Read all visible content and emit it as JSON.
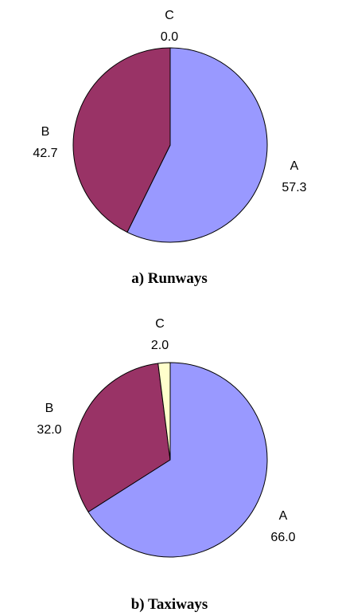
{
  "colors": {
    "A": "#9999ff",
    "B": "#993366",
    "C": "#ffffcc",
    "outline": "#000000"
  },
  "chart_data": [
    {
      "type": "pie",
      "caption": "a) Runways",
      "slices": [
        {
          "name": "A",
          "value": 57.3,
          "value_label": "57.3"
        },
        {
          "name": "B",
          "value": 42.7,
          "value_label": "42.7"
        },
        {
          "name": "C",
          "value": 0.0,
          "value_label": "0.0"
        }
      ]
    },
    {
      "type": "pie",
      "caption": "b) Taxiways",
      "slices": [
        {
          "name": "A",
          "value": 66.0,
          "value_label": "66.0"
        },
        {
          "name": "B",
          "value": 32.0,
          "value_label": "32.0"
        },
        {
          "name": "C",
          "value": 2.0,
          "value_label": "2.0"
        }
      ]
    }
  ]
}
